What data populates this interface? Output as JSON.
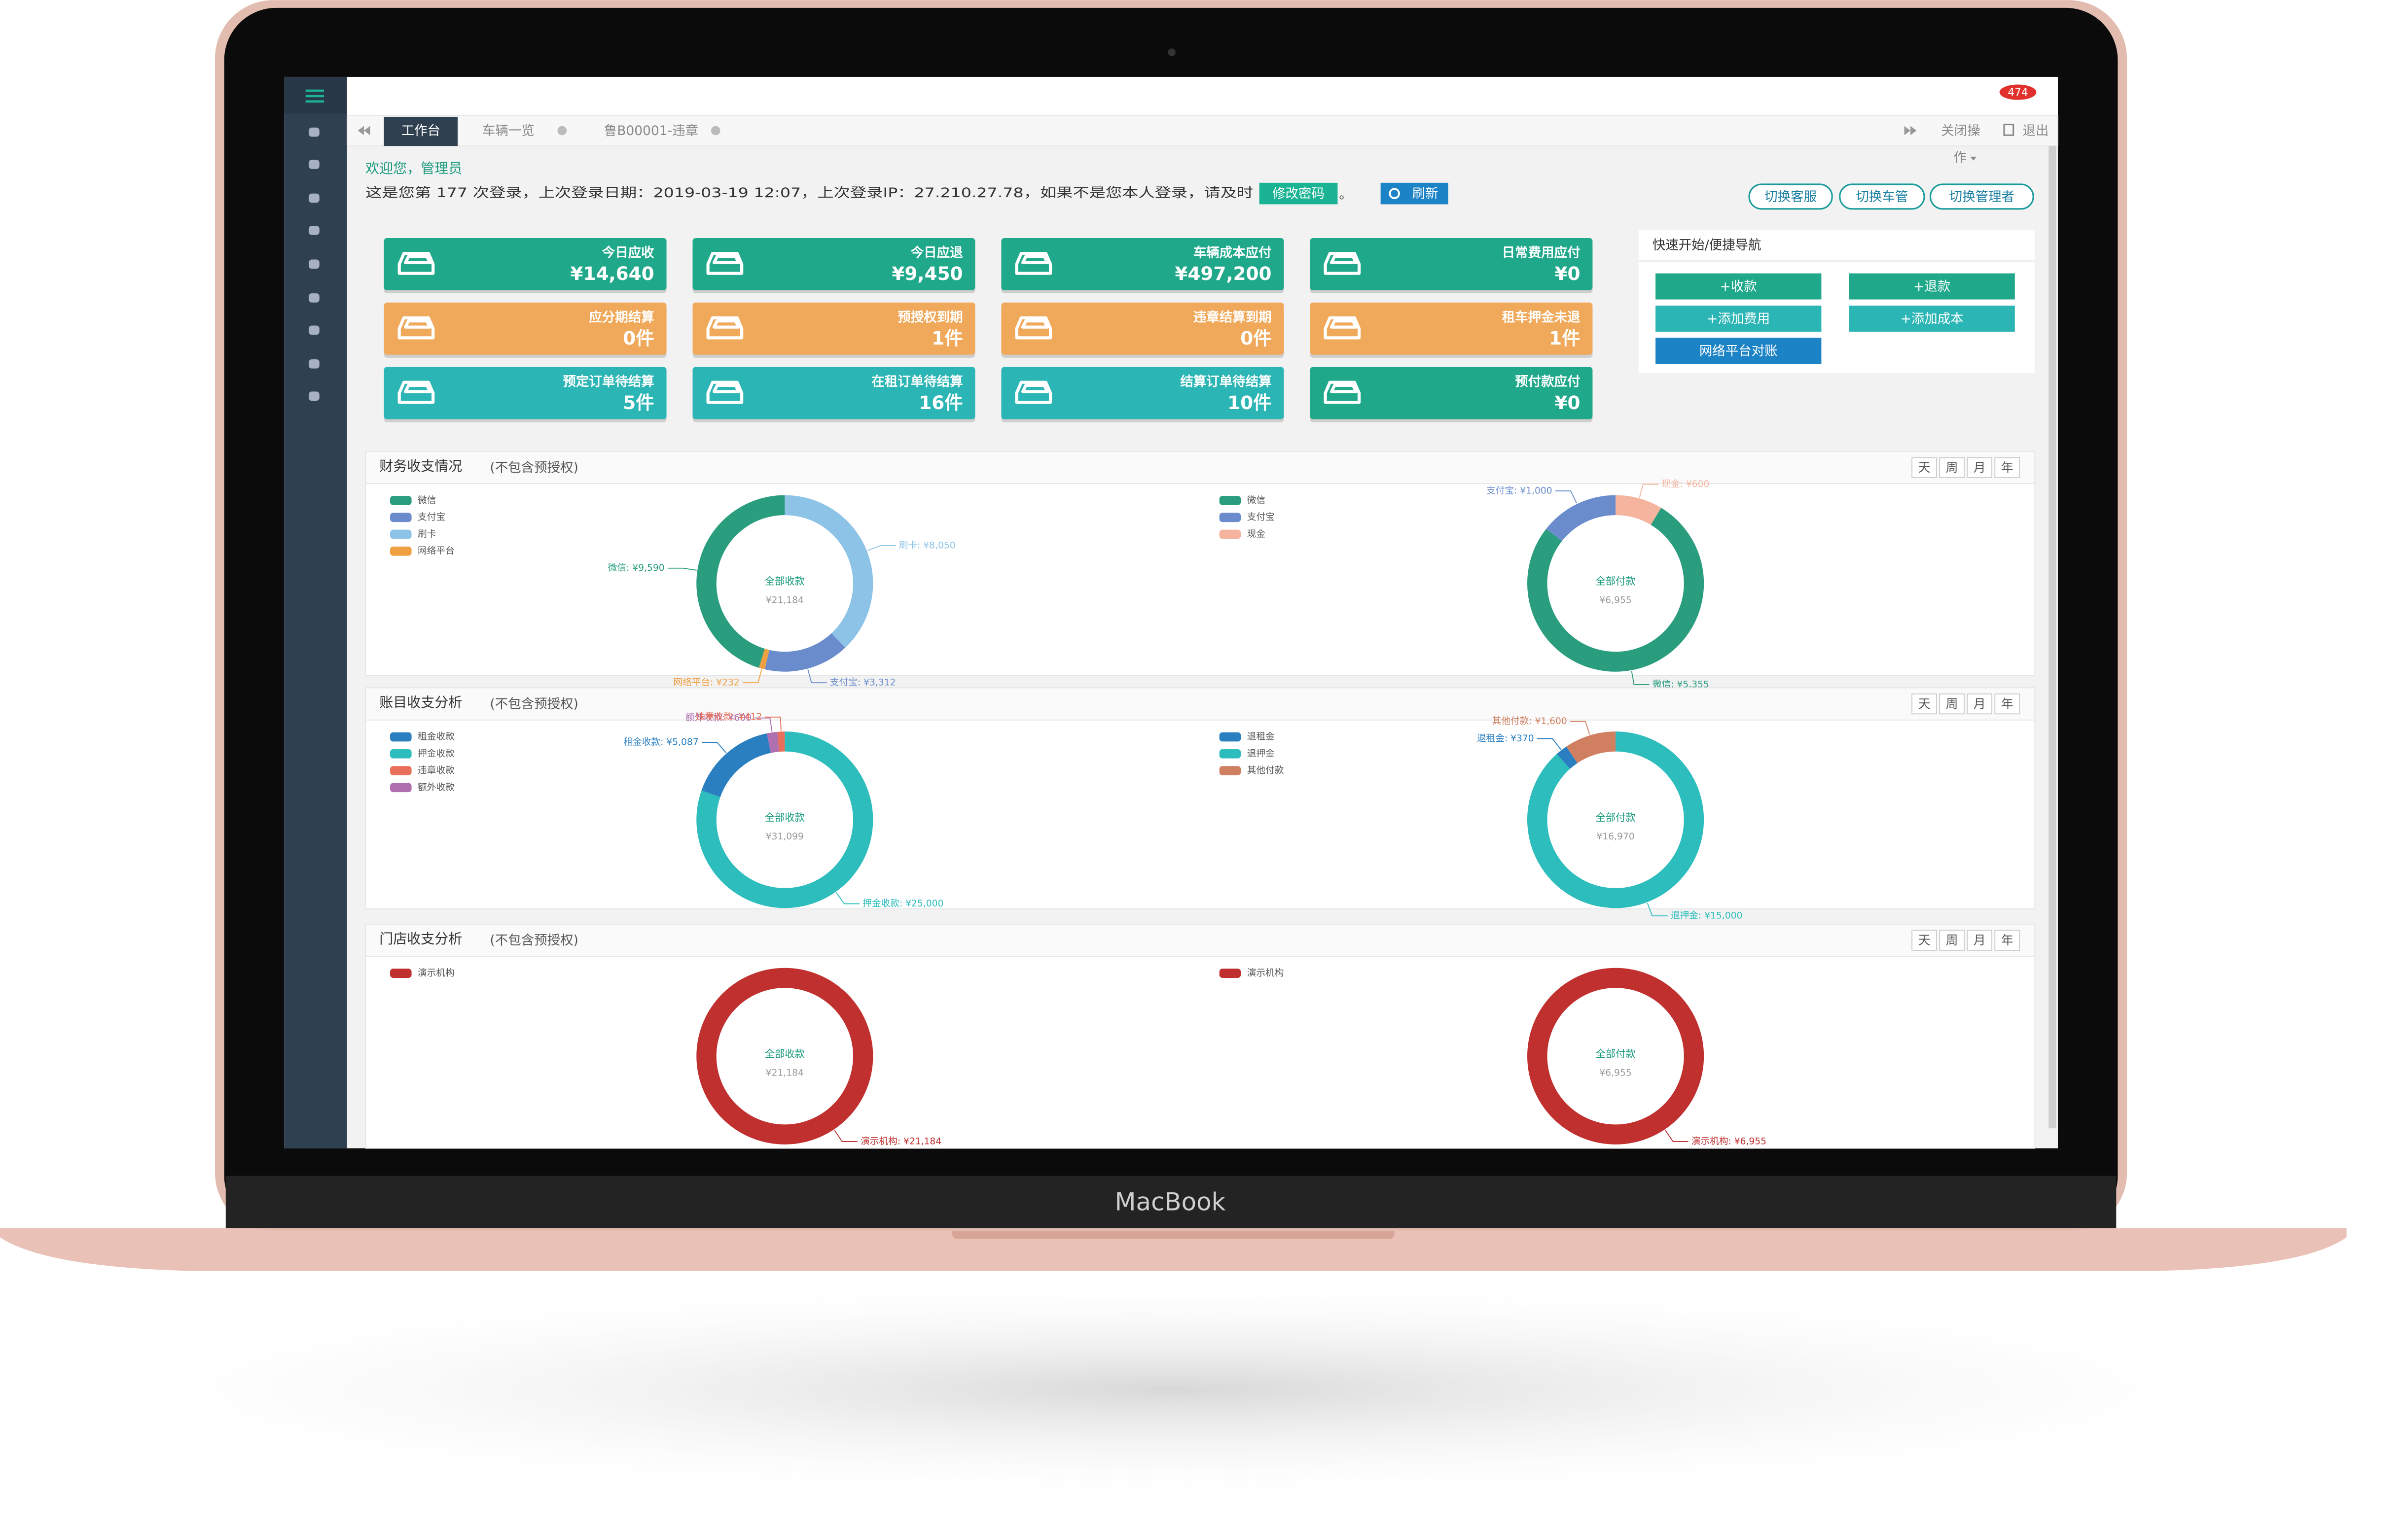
{
  "device": "MacBook",
  "topbar": {
    "badge": "474",
    "tabs": [
      "工作台",
      "车辆一览",
      "鲁B00001-违章"
    ],
    "close": "关闭操",
    "close_more": "作",
    "logout": "退出"
  },
  "welcome": {
    "greeting": "欢迎您，管理员",
    "info": "这是您第 177 次登录，上次登录日期：2019-03-19 12:07，上次登录IP：27.210.27.78，如果不是您本人登录，请及时",
    "change_password": "修改密码",
    "period": "。",
    "refresh": "刷新"
  },
  "role_buttons": [
    "切换客服",
    "切换车管",
    "切换管理者"
  ],
  "cards": [
    {
      "label": "今日应收",
      "value": "¥14,640",
      "color": "#1fa88a"
    },
    {
      "label": "今日应退",
      "value": "¥9,450",
      "color": "#1fa88a"
    },
    {
      "label": "车辆成本应付",
      "value": "¥497,200",
      "color": "#1fa88a"
    },
    {
      "label": "日常费用应付",
      "value": "¥0",
      "color": "#1fa88a"
    },
    {
      "label": "应分期结算",
      "value": "0件",
      "color": "#f0a95a"
    },
    {
      "label": "预授权到期",
      "value": "1件",
      "color": "#f0a95a"
    },
    {
      "label": "违章结算到期",
      "value": "0件",
      "color": "#f0a95a"
    },
    {
      "label": "租车押金未退",
      "value": "1件",
      "color": "#f0a95a"
    },
    {
      "label": "预定订单待结算",
      "value": "5件",
      "color": "#2cb5b5"
    },
    {
      "label": "在租订单待结算",
      "value": "16件",
      "color": "#2cb5b5"
    },
    {
      "label": "结算订单待结算",
      "value": "10件",
      "color": "#2cb5b5"
    },
    {
      "label": "预付款应付",
      "value": "¥0",
      "color": "#1fa88a"
    }
  ],
  "quick_nav": {
    "title": "快速开始/便捷导航",
    "buttons": [
      "+收款",
      "+退款",
      "+添加费用",
      "+添加成本",
      "网络平台对账"
    ]
  },
  "panels": [
    {
      "title": "财务收支情况",
      "note": "(不包含预授权)",
      "periods": [
        "天",
        "周",
        "月",
        "年"
      ],
      "charts": [
        {
          "center_label": "全部收款",
          "total_label": "¥21,184",
          "legend": [
            "微信",
            "支付宝",
            "刷卡",
            "网络平台"
          ],
          "slices": [
            {
              "name": "刷卡",
              "value": 8050,
              "label": "刷卡: ¥8,050",
              "color": "#8ec3e8"
            },
            {
              "name": "支付宝",
              "value": 3312,
              "label": "支付宝: ¥3,312",
              "color": "#6a8ccc"
            },
            {
              "name": "网络平台",
              "value": 232,
              "label": "网络平台: ¥232",
              "color": "#f0a040"
            },
            {
              "name": "微信",
              "value": 9590,
              "label": "微信: ¥9,590",
              "color": "#2a9d7f"
            }
          ]
        },
        {
          "center_label": "全部付款",
          "total_label": "¥6,955",
          "legend": [
            "微信",
            "支付宝",
            "现金"
          ],
          "slices": [
            {
              "name": "现金",
              "value": 600,
              "label": "现金: ¥600",
              "color": "#f4b49e"
            },
            {
              "name": "微信",
              "value": 5355,
              "label": "微信: ¥5,355",
              "color": "#2a9d7f"
            },
            {
              "name": "支付宝",
              "value": 1000,
              "label": "支付宝: ¥1,000",
              "color": "#6a8ccc"
            }
          ]
        }
      ]
    },
    {
      "title": "账目收支分析",
      "note": "(不包含预授权)",
      "periods": [
        "天",
        "周",
        "月",
        "年"
      ],
      "charts": [
        {
          "center_label": "全部收款",
          "total_label": "¥31,099",
          "legend": [
            "租金收款",
            "押金收款",
            "违章收款",
            "额外收款"
          ],
          "slices": [
            {
              "name": "押金收款",
              "value": 25000,
              "label": "押金收款: ¥25,000",
              "color": "#2ebdbd"
            },
            {
              "name": "租金收款",
              "value": 5087,
              "label": "租金收款: ¥5,087",
              "color": "#2a7fc0"
            },
            {
              "name": "额外收款",
              "value": 600,
              "label": "额外收款: ¥600",
              "color": "#b070b0"
            },
            {
              "name": "违章收款",
              "value": 412,
              "label": "违章收款: ¥412",
              "color": "#e8705a"
            }
          ]
        },
        {
          "center_label": "全部付款",
          "total_label": "¥16,970",
          "legend": [
            "退租金",
            "退押金",
            "其他付款"
          ],
          "slices": [
            {
              "name": "退押金",
              "value": 15000,
              "label": "退押金: ¥15,000",
              "color": "#2ebdbd"
            },
            {
              "name": "退租金",
              "value": 370,
              "label": "退租金: ¥370",
              "color": "#2a7fc0"
            },
            {
              "name": "其他付款",
              "value": 1600,
              "label": "其他付款: ¥1,600",
              "color": "#d07f60"
            }
          ]
        }
      ]
    },
    {
      "title": "门店收支分析",
      "note": "(不包含预授权)",
      "periods": [
        "天",
        "周",
        "月",
        "年"
      ],
      "charts": [
        {
          "center_label": "全部收款",
          "total_label": "¥21,184",
          "legend": [
            "演示机构"
          ],
          "slices": [
            {
              "name": "演示机构",
              "value": 21184,
              "label": "演示机构: ¥21,184",
              "color": "#c0302f"
            }
          ]
        },
        {
          "center_label": "全部付款",
          "total_label": "¥6,955",
          "legend": [
            "演示机构"
          ],
          "slices": [
            {
              "name": "演示机构",
              "value": 6955,
              "label": "演示机构: ¥6,955",
              "color": "#c0302f"
            }
          ]
        }
      ]
    }
  ]
}
